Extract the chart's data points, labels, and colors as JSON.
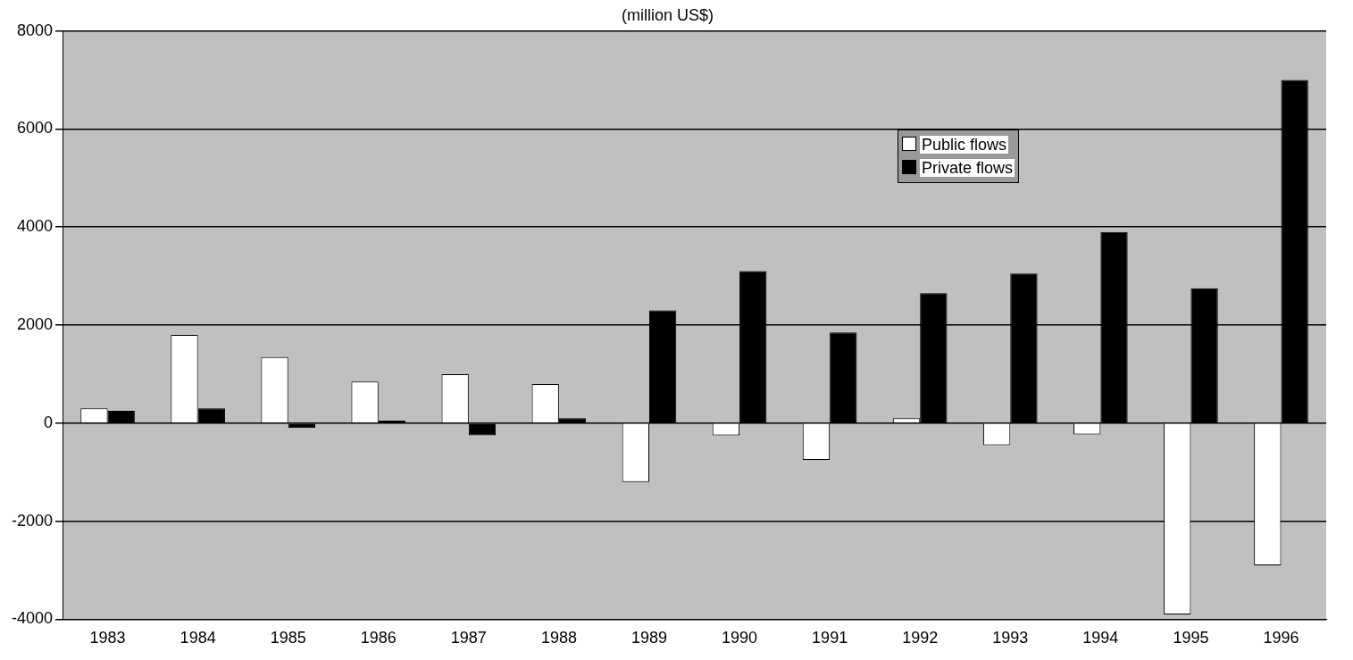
{
  "chart_data": {
    "type": "bar",
    "title": "(million US$)",
    "categories": [
      "1983",
      "1984",
      "1985",
      "1986",
      "1987",
      "1988",
      "1989",
      "1990",
      "1991",
      "1992",
      "1993",
      "1994",
      "1995",
      "1996"
    ],
    "series": [
      {
        "name": "Public flows",
        "color": "#ffffff",
        "values": [
          300,
          1800,
          1350,
          850,
          1000,
          800,
          -1200,
          -250,
          -750,
          100,
          -450,
          -230,
          -3900,
          -2900
        ]
      },
      {
        "name": "Private flows",
        "color": "#000000",
        "values": [
          250,
          300,
          -100,
          50,
          -250,
          100,
          2300,
          3100,
          1850,
          2650,
          3050,
          3900,
          2750,
          7000
        ]
      }
    ],
    "ylim": [
      -4000,
      8000
    ],
    "yticks": [
      -4000,
      -2000,
      0,
      2000,
      4000,
      6000,
      8000
    ],
    "grid": "y",
    "legend": "top right"
  }
}
